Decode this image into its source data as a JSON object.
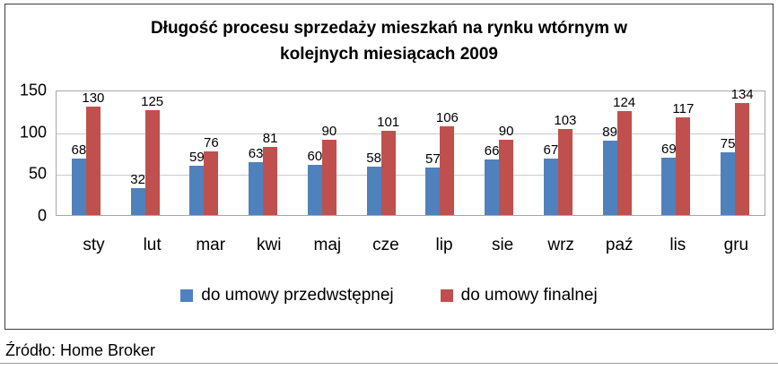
{
  "chart_data": {
    "type": "bar",
    "title": "Długość procesu sprzedaży mieszkań na rynku wtórnym w kolejnych miesiącach 2009",
    "categories": [
      "sty",
      "lut",
      "mar",
      "kwi",
      "maj",
      "cze",
      "lip",
      "sie",
      "wrz",
      "paź",
      "lis",
      "gru"
    ],
    "series": [
      {
        "name": "do umowy przedwstępnej",
        "color": "#4f81bd",
        "values": [
          68,
          32,
          59,
          63,
          60,
          58,
          57,
          66,
          67,
          89,
          69,
          75
        ]
      },
      {
        "name": "do umowy finalnej",
        "color": "#c0504d",
        "values": [
          130,
          125,
          76,
          81,
          90,
          101,
          106,
          90,
          103,
          124,
          117,
          134
        ]
      }
    ],
    "ylim": [
      0,
      150
    ],
    "yticks": [
      0,
      50,
      100,
      150
    ],
    "grid": true,
    "legend_position": "bottom",
    "data_labels": true
  },
  "source": "Źródło: Home Broker"
}
